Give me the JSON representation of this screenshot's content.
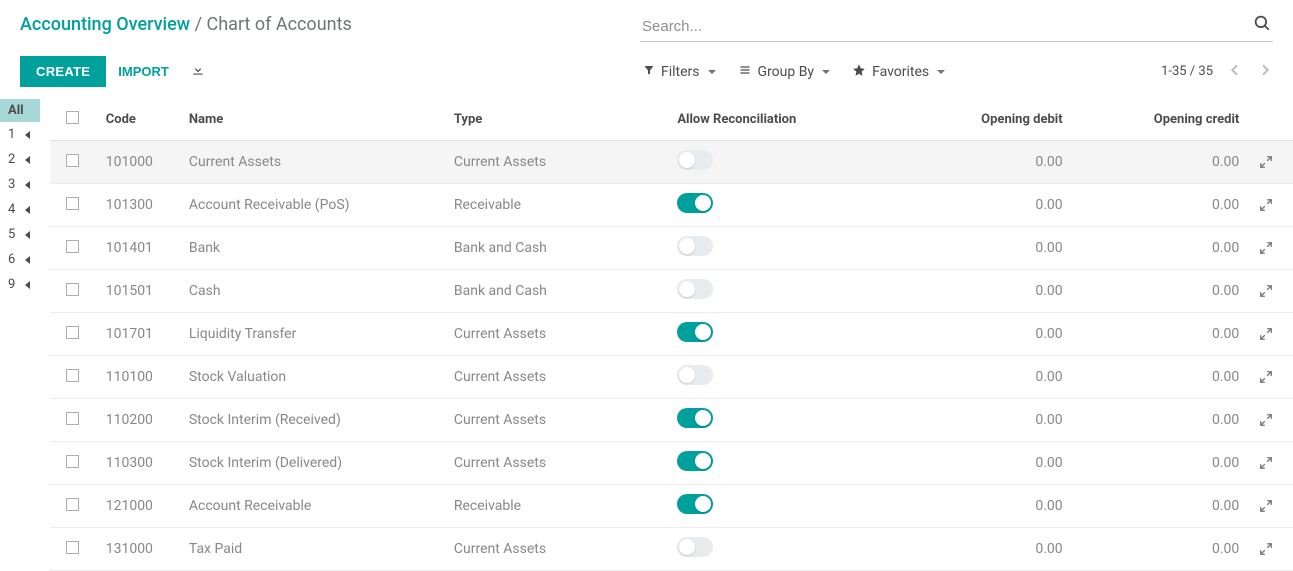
{
  "colors": {
    "primary": "#00a09d",
    "text": "#4c4c4c",
    "muted": "#888888",
    "border": "#ececec"
  },
  "breadcrumb": {
    "link": "Accounting Overview",
    "sep": "/",
    "current": "Chart of Accounts"
  },
  "search": {
    "placeholder": "Search..."
  },
  "toolbar": {
    "create": "CREATE",
    "import": "IMPORT"
  },
  "filters": {
    "filters": "Filters",
    "groupby": "Group By",
    "favorites": "Favorites"
  },
  "pager": {
    "text": "1-35 / 35"
  },
  "nav": {
    "all": "All",
    "items": [
      "1",
      "2",
      "3",
      "4",
      "5",
      "6",
      "9"
    ]
  },
  "columns": {
    "code": "Code",
    "name": "Name",
    "type": "Type",
    "reconcile": "Allow Reconciliation",
    "debit": "Opening debit",
    "credit": "Opening credit"
  },
  "rows": [
    {
      "code": "101000",
      "name": "Current Assets",
      "type": "Current Assets",
      "recon": false,
      "debit": "0.00",
      "credit": "0.00"
    },
    {
      "code": "101300",
      "name": "Account Receivable (PoS)",
      "type": "Receivable",
      "recon": true,
      "debit": "0.00",
      "credit": "0.00"
    },
    {
      "code": "101401",
      "name": "Bank",
      "type": "Bank and Cash",
      "recon": false,
      "debit": "0.00",
      "credit": "0.00"
    },
    {
      "code": "101501",
      "name": "Cash",
      "type": "Bank and Cash",
      "recon": false,
      "debit": "0.00",
      "credit": "0.00"
    },
    {
      "code": "101701",
      "name": "Liquidity Transfer",
      "type": "Current Assets",
      "recon": true,
      "debit": "0.00",
      "credit": "0.00"
    },
    {
      "code": "110100",
      "name": "Stock Valuation",
      "type": "Current Assets",
      "recon": false,
      "debit": "0.00",
      "credit": "0.00"
    },
    {
      "code": "110200",
      "name": "Stock Interim (Received)",
      "type": "Current Assets",
      "recon": true,
      "debit": "0.00",
      "credit": "0.00"
    },
    {
      "code": "110300",
      "name": "Stock Interim (Delivered)",
      "type": "Current Assets",
      "recon": true,
      "debit": "0.00",
      "credit": "0.00"
    },
    {
      "code": "121000",
      "name": "Account Receivable",
      "type": "Receivable",
      "recon": true,
      "debit": "0.00",
      "credit": "0.00"
    },
    {
      "code": "131000",
      "name": "Tax Paid",
      "type": "Current Assets",
      "recon": false,
      "debit": "0.00",
      "credit": "0.00"
    }
  ]
}
